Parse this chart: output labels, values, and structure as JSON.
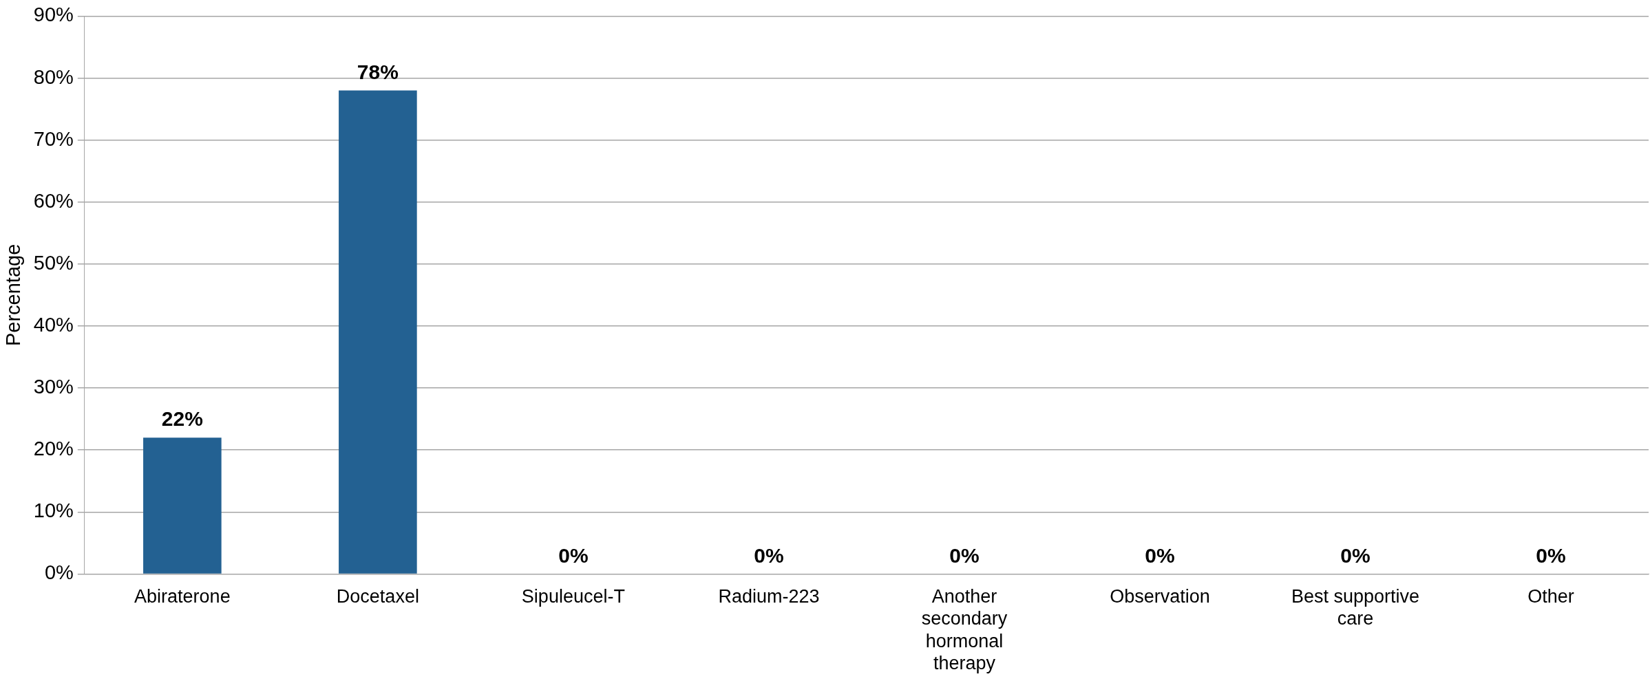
{
  "chart_data": {
    "type": "bar",
    "ylabel": "Percentage",
    "categories": [
      "Abiraterone",
      "Docetaxel",
      "Sipuleucel-T",
      "Radium-223",
      "Another secondary hormonal therapy",
      "Observation",
      "Best supportive care",
      "Other"
    ],
    "values": [
      22,
      78,
      0,
      0,
      0,
      0,
      0,
      0
    ],
    "color": "#236192",
    "value_labels": [
      "22%",
      "78%",
      "0%",
      "0%",
      "0%",
      "0%",
      "0%",
      "0%"
    ],
    "ylim": [
      0,
      90
    ],
    "yticks": [
      {
        "value": 0,
        "label": "0%"
      },
      {
        "value": 10,
        "label": "10%"
      },
      {
        "value": 20,
        "label": "20%"
      },
      {
        "value": 30,
        "label": "30%"
      },
      {
        "value": 40,
        "label": "40%"
      },
      {
        "value": 50,
        "label": "50%"
      },
      {
        "value": 60,
        "label": "60%"
      },
      {
        "value": 70,
        "label": "70%"
      },
      {
        "value": 80,
        "label": "80%"
      },
      {
        "value": 90,
        "label": "90%"
      }
    ],
    "grid": "y",
    "legend": false
  }
}
